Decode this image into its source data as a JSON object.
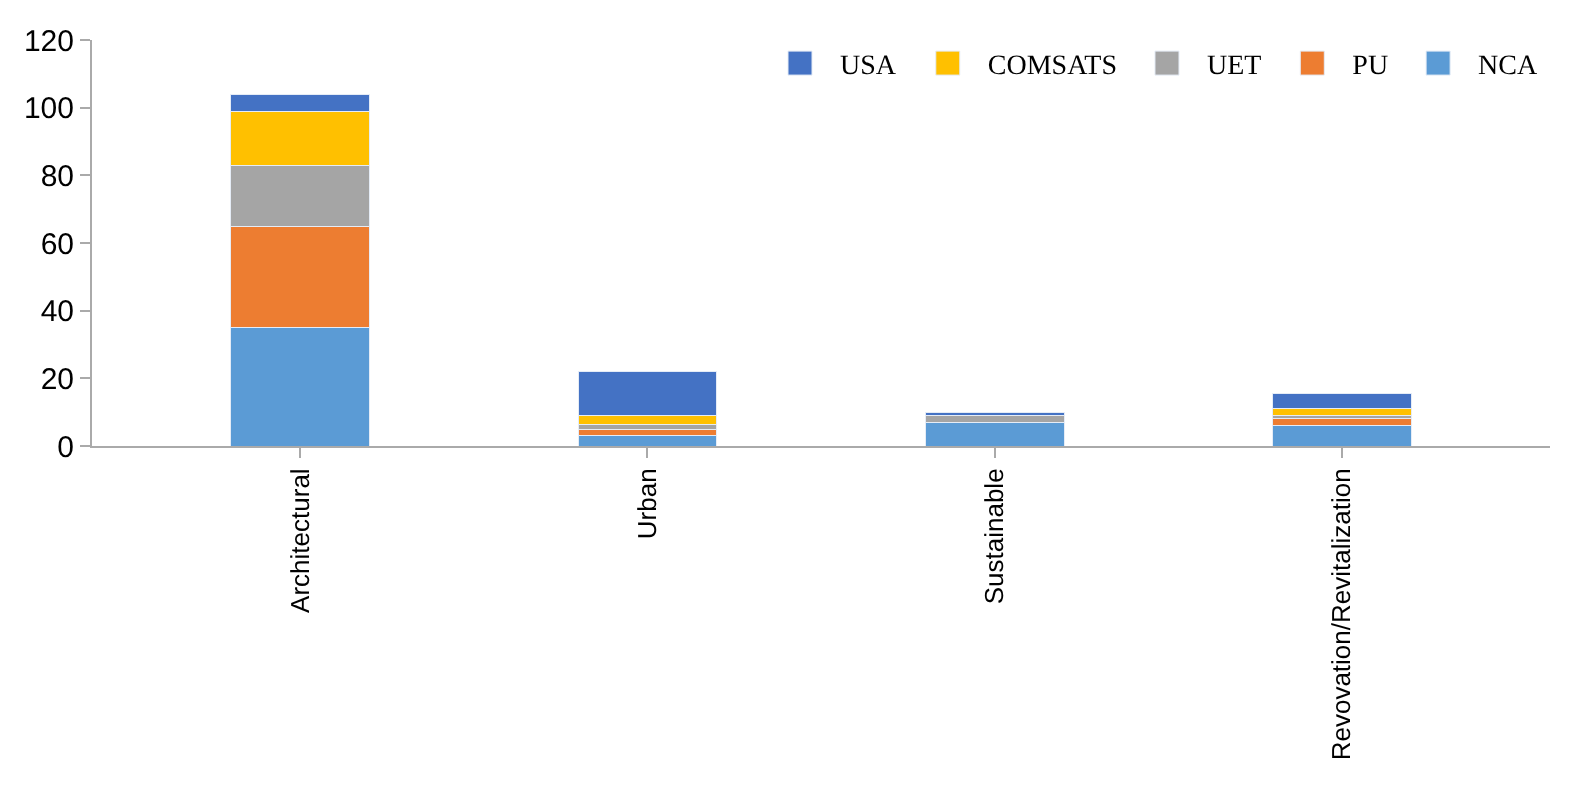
{
  "chart_data": {
    "type": "bar",
    "stacked": true,
    "categories": [
      "Architectural",
      "Urban",
      "Sustainable",
      "Revovation/Revitalization"
    ],
    "series": [
      {
        "name": "NCA",
        "color": "#5b9bd5",
        "values": [
          35,
          3,
          7,
          6
        ]
      },
      {
        "name": "PU",
        "color": "#ed7d31",
        "values": [
          30,
          2,
          null,
          2
        ]
      },
      {
        "name": "UET",
        "color": "#a5a5a5",
        "values": [
          18,
          1.5,
          2,
          1
        ]
      },
      {
        "name": "COMSATS",
        "color": "#ffc000",
        "values": [
          16,
          2.5,
          null,
          2
        ]
      },
      {
        "name": "USA",
        "color": "#4472c4",
        "values": [
          5,
          13,
          1,
          4.5
        ]
      }
    ],
    "ylim": [
      0,
      120
    ],
    "yticks": [
      0,
      20,
      40,
      60,
      80,
      100,
      120
    ],
    "legend": "top right"
  }
}
